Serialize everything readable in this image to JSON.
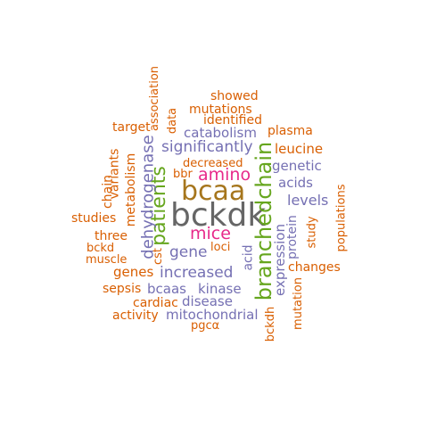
{
  "colors": {
    "orange": "#d95f02",
    "purple": "#7570b3",
    "green": "#66a61e",
    "magenta": "#e7298a",
    "brown": "#a6761d",
    "gray": "#666666"
  },
  "words": [
    "bckdk",
    "bcaa",
    "branchedchain",
    "patients",
    "mice",
    "amino",
    "dehydrogenase",
    "increased",
    "significantly",
    "catabolism",
    "gene",
    "bcaas",
    "kinase",
    "disease",
    "mitochondrial",
    "levels",
    "expression",
    "acids",
    "genetic",
    "leucine",
    "protein",
    "acid",
    "plasma",
    "decreased",
    "identified",
    "mutations",
    "showed",
    "association",
    "data",
    "target",
    "metabolism",
    "variants",
    "chain",
    "studies",
    "three",
    "bckd",
    "muscle",
    "genes",
    "sepsis",
    "cardiac",
    "activity",
    "pgcα",
    "bckdh",
    "mutation",
    "changes",
    "study",
    "populations",
    "loci",
    "cst",
    "bbr"
  ]
}
